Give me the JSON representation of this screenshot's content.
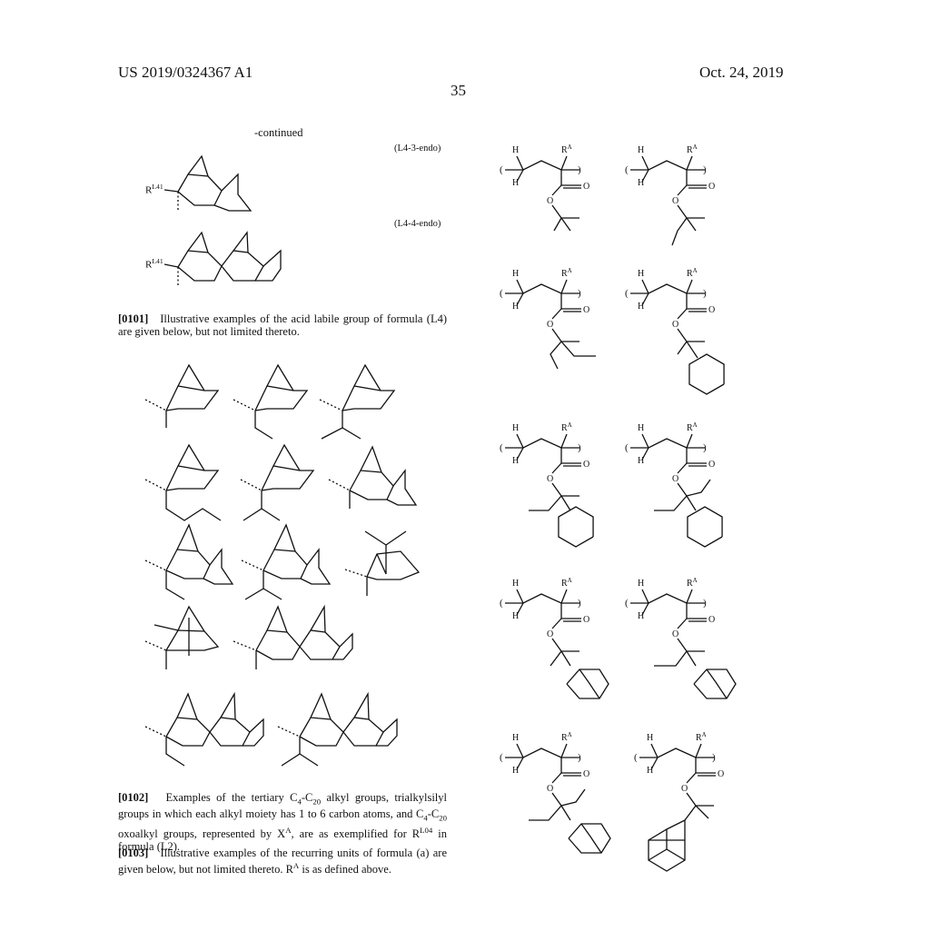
{
  "header": {
    "patent_number": "US 2019/0324367 A1",
    "date": "Oct. 24, 2019",
    "page_number": "35"
  },
  "left": {
    "continued": "-continued",
    "formula_labels": [
      "(L4-3-endo)",
      "(L4-4-endo)"
    ],
    "substituent_label": "R",
    "substituent_sup": "L41",
    "para_0101_num": "[0101]",
    "para_0101_text": "Illustrative examples of the acid labile group of formula (L4) are given below, but not limited thereto.",
    "para_0102_num": "[0102]",
    "para_0102_a": "Examples of the tertiary C",
    "para_0102_sub1": "4",
    "para_0102_b": "-C",
    "para_0102_sub2": "20",
    "para_0102_c": " alkyl groups, trialkylsilyl groups in which each alkyl moiety has 1 to 6 carbon atoms, and C",
    "para_0102_sub3": "4",
    "para_0102_d": "-C",
    "para_0102_sub4": "20",
    "para_0102_e": " oxoalkyl groups, represented by X",
    "para_0102_sup1": "A",
    "para_0102_f": ", are as exemplified for R",
    "para_0102_sup2": "L04",
    "para_0102_g": " in formula (L2).",
    "para_0103_num": "[0103]",
    "para_0103_a": "Illustrative examples of the recurring units of formula (a) are given below, but not limited thereto. R",
    "para_0103_sup": "A",
    "para_0103_b": " is as defined above."
  },
  "right": {
    "atom_H": "H",
    "atom_O": "O",
    "atom_R": "R",
    "atom_R_sup": "A",
    "paren_open": "(",
    "paren_close": ")"
  }
}
